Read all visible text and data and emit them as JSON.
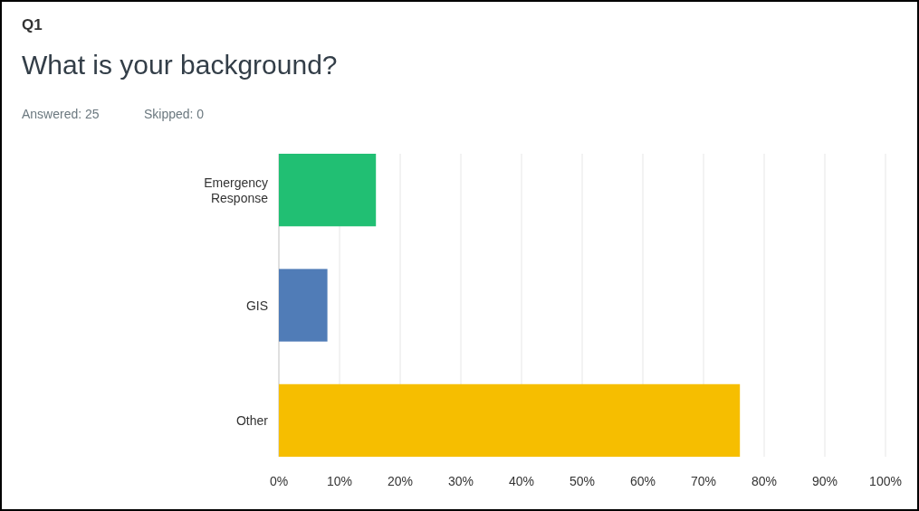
{
  "chart_data": {
    "type": "bar",
    "orientation": "horizontal",
    "title": "What is your background?",
    "annotations": [
      "Q1",
      "Answered: 25",
      "Skipped: 0"
    ],
    "categories": [
      "Emergency Response",
      "GIS",
      "Other"
    ],
    "values": [
      16,
      8,
      76
    ],
    "colors": [
      "#21bf73",
      "#507cb7",
      "#f6be00"
    ],
    "xlim": [
      0,
      100
    ],
    "xticks": [
      {
        "value": 0,
        "label": "0%"
      },
      {
        "value": 10,
        "label": "10%"
      },
      {
        "value": 20,
        "label": "20%"
      },
      {
        "value": 30,
        "label": "30%"
      },
      {
        "value": 40,
        "label": "40%"
      },
      {
        "value": 50,
        "label": "50%"
      },
      {
        "value": 60,
        "label": "60%"
      },
      {
        "value": 70,
        "label": "70%"
      },
      {
        "value": 80,
        "label": "80%"
      },
      {
        "value": 90,
        "label": "90%"
      },
      {
        "value": 100,
        "label": "100%"
      }
    ],
    "grid": "x"
  }
}
